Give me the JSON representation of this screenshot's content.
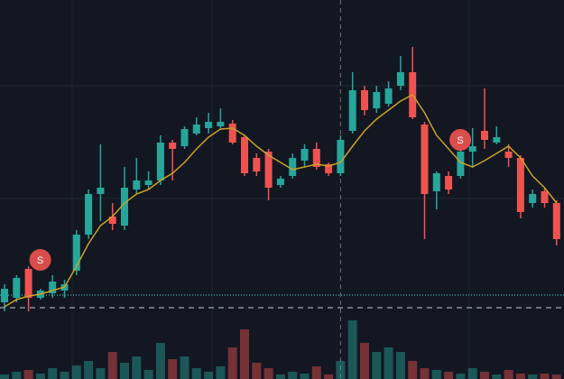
{
  "chart_data": {
    "type": "candlestick",
    "up_color": "#26a69a",
    "down_color": "#ef5350",
    "ma_color": "#c9a227",
    "ylim": [
      0,
      420
    ],
    "volume_lim": [
      0,
      70
    ],
    "open": [
      85,
      90,
      122,
      90,
      95,
      98,
      120,
      160,
      205,
      180,
      170,
      210,
      215,
      220,
      262,
      258,
      272,
      278,
      280,
      283,
      268,
      245,
      252,
      215,
      225,
      242,
      255,
      238,
      228,
      275,
      320,
      300,
      305,
      325,
      340,
      282,
      208,
      225,
      225,
      252,
      275,
      262,
      252,
      245,
      195,
      208,
      195
    ],
    "high": [
      105,
      115,
      125,
      100,
      115,
      110,
      165,
      210,
      260,
      195,
      235,
      245,
      230,
      270,
      265,
      280,
      290,
      295,
      300,
      287,
      270,
      250,
      255,
      225,
      250,
      260,
      262,
      240,
      270,
      340,
      325,
      325,
      330,
      358,
      368,
      285,
      230,
      230,
      255,
      278,
      322,
      280,
      260,
      248,
      210,
      212,
      198
    ],
    "low": [
      75,
      85,
      75,
      88,
      90,
      90,
      115,
      155,
      175,
      165,
      165,
      205,
      210,
      215,
      220,
      255,
      270,
      272,
      278,
      260,
      225,
      225,
      198,
      212,
      222,
      235,
      232,
      225,
      225,
      272,
      292,
      295,
      302,
      320,
      288,
      155,
      188,
      205,
      222,
      235,
      255,
      260,
      235,
      178,
      190,
      190,
      148
    ],
    "close": [
      100,
      112,
      90,
      98,
      108,
      105,
      160,
      205,
      212,
      172,
      212,
      220,
      220,
      262,
      255,
      277,
      282,
      285,
      285,
      262,
      228,
      230,
      212,
      222,
      245,
      255,
      235,
      228,
      265,
      320,
      298,
      318,
      322,
      340,
      290,
      205,
      228,
      210,
      252,
      258,
      265,
      268,
      245,
      185,
      205,
      195,
      155
    ],
    "ma": [
      80,
      88,
      92,
      94,
      98,
      102,
      125,
      150,
      170,
      180,
      195,
      205,
      210,
      220,
      228,
      240,
      255,
      268,
      277,
      278,
      270,
      258,
      248,
      240,
      232,
      235,
      238,
      236,
      240,
      258,
      275,
      288,
      298,
      308,
      315,
      295,
      270,
      255,
      240,
      235,
      242,
      250,
      258,
      245,
      225,
      212,
      195
    ],
    "volume": [
      5,
      8,
      10,
      6,
      12,
      8,
      15,
      20,
      12,
      30,
      18,
      25,
      10,
      40,
      22,
      25,
      12,
      8,
      14,
      35,
      55,
      18,
      12,
      5,
      8,
      6,
      14,
      5,
      20,
      65,
      40,
      30,
      35,
      30,
      20,
      12,
      10,
      8,
      6,
      12,
      8,
      5,
      10,
      6,
      5,
      6,
      5
    ],
    "levels": [
      {
        "value": 93,
        "color": "#26a69a",
        "style": "dotted"
      },
      {
        "value": 79,
        "color": "#8a8f9c",
        "style": "dashed"
      }
    ],
    "crosshair": 28,
    "markers": [
      {
        "candle": 2,
        "price": 132,
        "label": "S"
      },
      {
        "candle": 37,
        "price": 265,
        "label": "S"
      }
    ]
  }
}
